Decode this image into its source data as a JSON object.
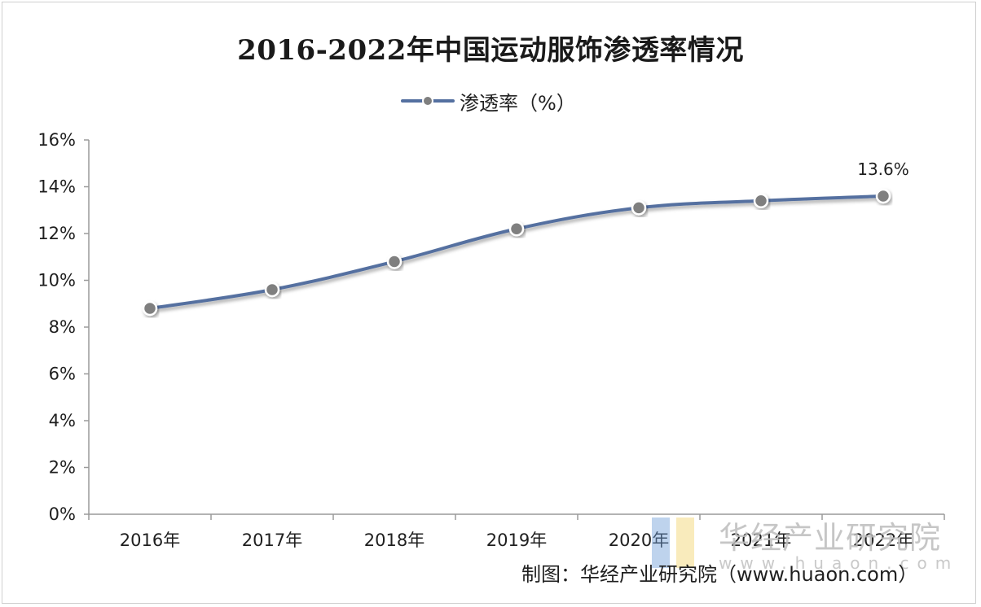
{
  "chart_data": {
    "type": "line",
    "title": "2016-2022年中国运动服饰渗透率情况",
    "categories": [
      "2016年",
      "2017年",
      "2018年",
      "2019年",
      "2020年",
      "2021年",
      "2022年"
    ],
    "series": [
      {
        "name": "渗透率（%）",
        "values": [
          8.8,
          9.6,
          10.8,
          12.2,
          13.1,
          13.4,
          13.6
        ]
      }
    ],
    "data_labels": [
      {
        "category_index": 6,
        "text": "13.6%"
      }
    ],
    "y_ticks": [
      "0%",
      "2%",
      "4%",
      "6%",
      "8%",
      "10%",
      "12%",
      "14%",
      "16%"
    ],
    "ylim": [
      0,
      16
    ],
    "y_step": 2,
    "grid": false,
    "legend_position": "top-center",
    "colors": {
      "line": "#5470a0",
      "marker_fill": "#7f7f7f",
      "marker_stroke": "#ffffff"
    }
  },
  "source": "制图：华经产业研究院（www.huaon.com）",
  "watermark": {
    "text": "华经产业研究院",
    "url": "www.huaon.com"
  }
}
